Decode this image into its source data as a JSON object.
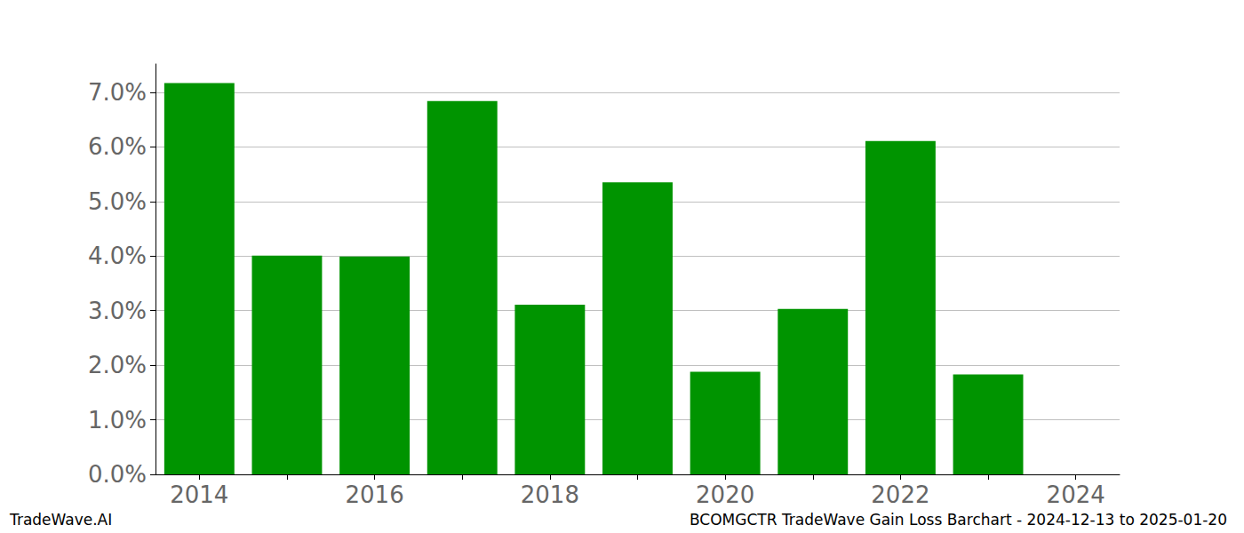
{
  "chart_data": {
    "type": "bar",
    "title": "BCOMGCTR TradeWave Gain Loss Barchart - 2024-12-13 to 2025-01-20",
    "source": "TradeWave.AI",
    "categories": [
      "2014",
      null,
      "2016",
      null,
      "2018",
      null,
      "2020",
      null,
      "2022",
      null,
      "2024"
    ],
    "values": [
      7.17,
      4.01,
      3.99,
      6.84,
      3.11,
      5.35,
      1.88,
      3.03,
      6.11,
      1.83,
      null
    ],
    "color": "#009400",
    "ylim": [
      0,
      7.52
    ],
    "yticks": [
      {
        "value": 0,
        "label": "0.0%"
      },
      {
        "value": 1,
        "label": "1.0%"
      },
      {
        "value": 2,
        "label": "2.0%"
      },
      {
        "value": 3,
        "label": "3.0%"
      },
      {
        "value": 4,
        "label": "4.0%"
      },
      {
        "value": 5,
        "label": "5.0%"
      },
      {
        "value": 6,
        "label": "6.0%"
      },
      {
        "value": 7,
        "label": "7.0%"
      }
    ],
    "grid": true
  }
}
